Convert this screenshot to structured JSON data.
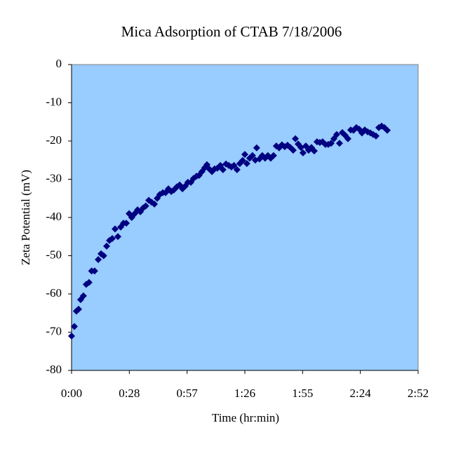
{
  "chart_data": {
    "type": "scatter",
    "title": "Mica Adsorption of CTAB 7/18/2006",
    "x_label": "Time (hr:min)",
    "y_label": "Zeta Potential (mV)",
    "color": "#000080",
    "background": "#99ccff",
    "xlim": [
      0,
      172.8
    ],
    "xticks": [
      {
        "value": 0,
        "label": "0:00"
      },
      {
        "value": 28.8,
        "label": "0:28"
      },
      {
        "value": 57.6,
        "label": "0:57"
      },
      {
        "value": 86.4,
        "label": "1:26"
      },
      {
        "value": 115.2,
        "label": "1:55"
      },
      {
        "value": 144,
        "label": "2:24"
      },
      {
        "value": 172.8,
        "label": "2:52"
      }
    ],
    "ylim": [
      -80,
      0
    ],
    "yticks": [
      -80,
      -70,
      -60,
      -50,
      -40,
      -30,
      -20,
      -10,
      0
    ],
    "x": [
      0,
      1.4,
      2.4,
      3.5,
      4.5,
      5.9,
      7.3,
      8.7,
      10,
      11.5,
      13.3,
      14.7,
      16,
      17.5,
      18.9,
      20.3,
      21.7,
      23.1,
      24.5,
      25.9,
      27.3,
      28.7,
      30,
      31.5,
      32.9,
      34.3,
      35.7,
      37,
      38.5,
      39.9,
      41.3,
      42.7,
      44,
      45.5,
      46.9,
      48.3,
      49.7,
      51,
      52.5,
      53.9,
      55.3,
      56.7,
      58,
      59.5,
      60.8,
      62.3,
      63.6,
      65,
      66.4,
      67.5,
      68.6,
      70,
      71.3,
      72.7,
      74.2,
      75.5,
      77,
      78.4,
      79.7,
      81,
      82.5,
      83.9,
      85.3,
      86.4,
      87.4,
      88.8,
      90.2,
      91.6,
      92.3,
      93.7,
      95.1,
      96.5,
      97.9,
      99.3,
      100.7,
      102.1,
      103.5,
      104.9,
      106.3,
      107.7,
      109.1,
      110.5,
      111.6,
      113,
      114.4,
      115.4,
      116.8,
      118.2,
      119.6,
      121,
      122.4,
      123.8,
      125.2,
      126.6,
      128,
      129.4,
      130.8,
      132.2,
      133.6,
      135,
      136.4,
      137.8,
      139.2,
      140.6,
      142,
      143.4,
      144.8,
      146.2,
      147.6,
      149,
      150.4,
      151.8,
      153.2,
      154.6,
      156,
      157.4
    ],
    "values": [
      -71,
      -68.5,
      -64.5,
      -64,
      -61.5,
      -60.5,
      -57.5,
      -57,
      -54,
      -54,
      -51,
      -49.5,
      -50,
      -47.5,
      -46,
      -45.5,
      -43,
      -45,
      -42.5,
      -41.5,
      -41.5,
      -39,
      -40,
      -39,
      -38,
      -38.5,
      -37.5,
      -37,
      -35.5,
      -36,
      -36.5,
      -35,
      -34,
      -33.5,
      -33.5,
      -32.5,
      -33.2,
      -32.8,
      -32,
      -31.5,
      -32.5,
      -31.8,
      -30.8,
      -30.8,
      -29.8,
      -29.2,
      -29,
      -28,
      -27,
      -26.2,
      -27.3,
      -28,
      -27.3,
      -27.1,
      -26.4,
      -27.5,
      -26,
      -26.4,
      -26.8,
      -26.4,
      -27.5,
      -25.9,
      -25.1,
      -23.5,
      -25.9,
      -24.5,
      -23.8,
      -25,
      -21.8,
      -24.7,
      -23.8,
      -24.5,
      -23.8,
      -24.5,
      -23.8,
      -21.3,
      -21.8,
      -21,
      -21.5,
      -21.1,
      -21.7,
      -22.4,
      -19.4,
      -20.8,
      -21.7,
      -23.1,
      -21.3,
      -22.4,
      -21.7,
      -22.6,
      -20.2,
      -20.4,
      -20.2,
      -20.9,
      -20.9,
      -20.6,
      -19.4,
      -18.3,
      -20.6,
      -17.8,
      -18.5,
      -19.4,
      -17.1,
      -17.2,
      -16.5,
      -16.9,
      -17.9,
      -17.1,
      -17.6,
      -17.9,
      -18.3,
      -18.7,
      -16.5,
      -16.1,
      -16.5,
      -17.2
    ]
  }
}
